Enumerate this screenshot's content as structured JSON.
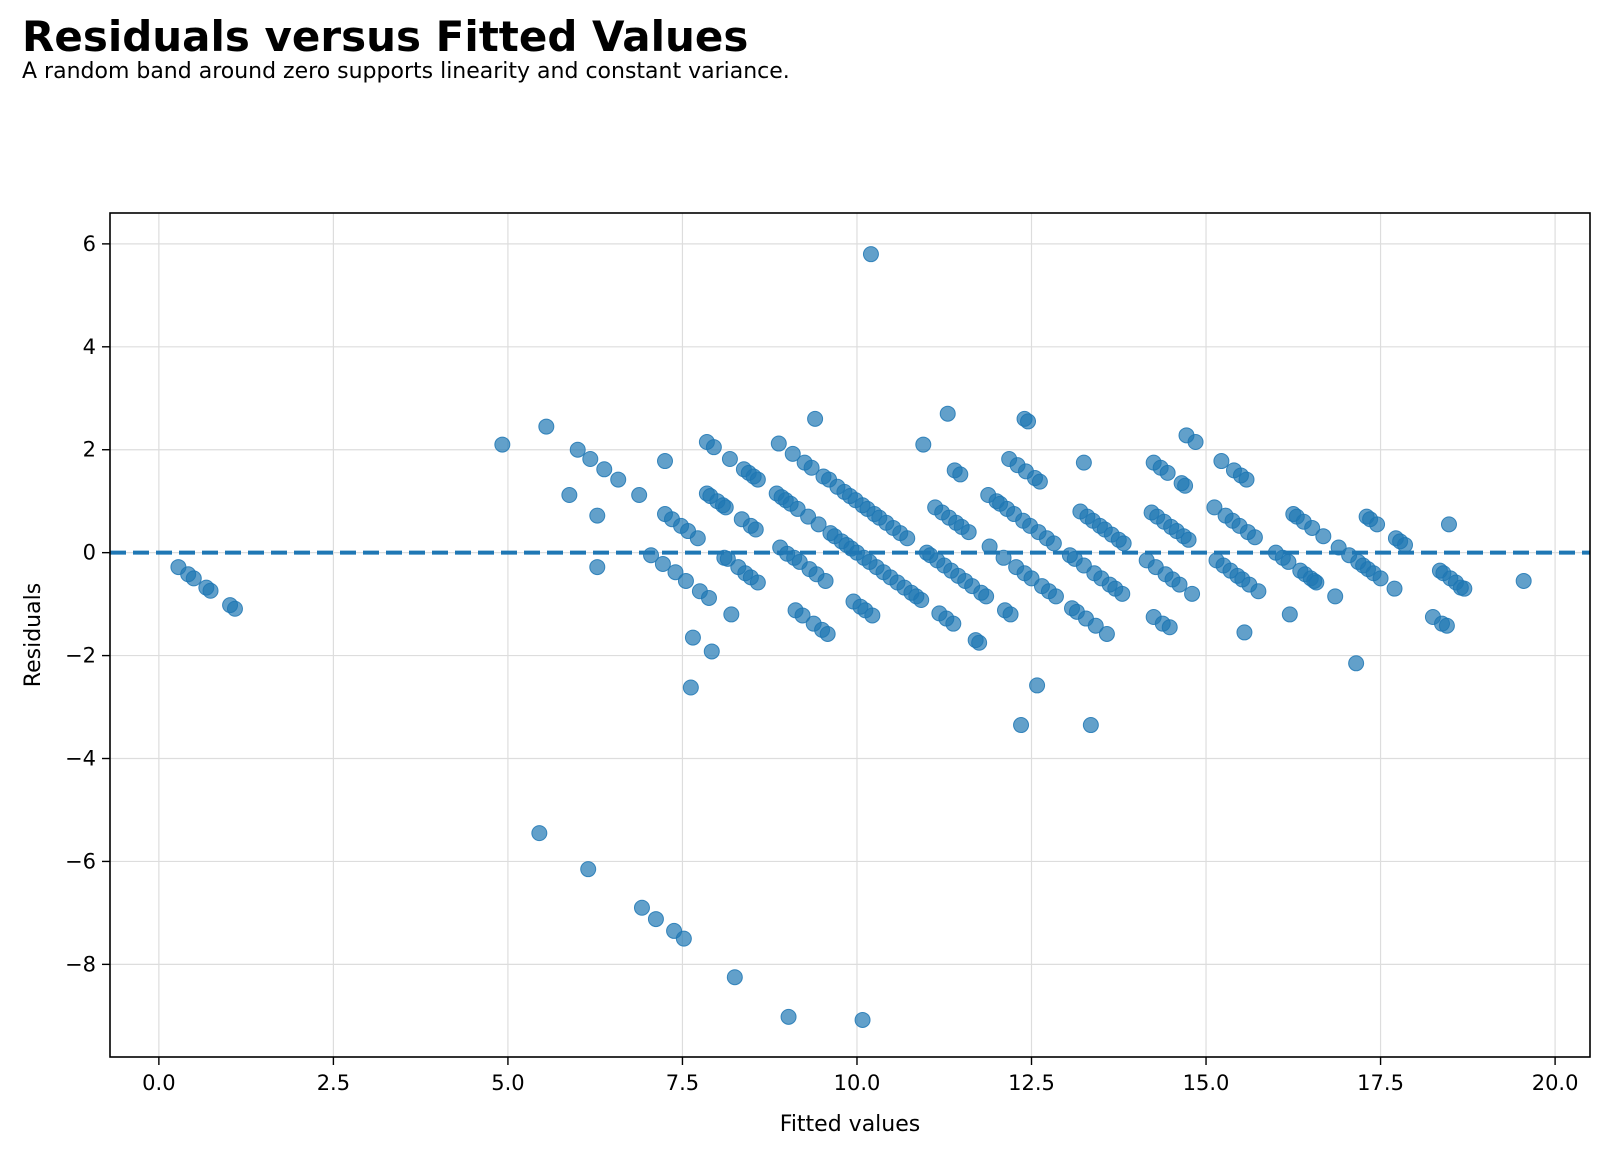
{
  "chart_data": {
    "type": "scatter",
    "title": "Residuals versus Fitted Values",
    "subtitle": "A random band around zero supports linearity and constant variance.",
    "xlabel": "Fitted values",
    "ylabel": "Residuals",
    "xlim": [
      -0.7,
      20.5
    ],
    "ylim": [
      -9.8,
      6.6
    ],
    "xticks": [
      0.0,
      2.5,
      5.0,
      7.5,
      10.0,
      12.5,
      15.0,
      17.5,
      20.0
    ],
    "xtick_labels": [
      "0.0",
      "2.5",
      "5.0",
      "7.5",
      "10.0",
      "12.5",
      "15.0",
      "17.5",
      "20.0"
    ],
    "yticks": [
      6,
      4,
      2,
      0,
      -2,
      -4,
      -6,
      -8
    ],
    "ytick_labels": [
      "6",
      "4",
      "2",
      "0",
      "−2",
      "−4",
      "−6",
      "−8"
    ],
    "grid": true,
    "reference_line": {
      "y": 0,
      "style": "dashed"
    },
    "colors": {
      "points": "#1f77b4",
      "reference_line": "#1f77b4",
      "grid": "#dddddd",
      "axes": "#000000"
    },
    "points": [
      [
        0.28,
        -0.28
      ],
      [
        0.42,
        -0.42
      ],
      [
        0.5,
        -0.5
      ],
      [
        0.68,
        -0.68
      ],
      [
        0.74,
        -0.74
      ],
      [
        1.02,
        -1.02
      ],
      [
        1.09,
        -1.09
      ],
      [
        4.92,
        2.1
      ],
      [
        5.45,
        -5.45
      ],
      [
        5.55,
        2.45
      ],
      [
        5.88,
        1.12
      ],
      [
        6.0,
        2.0
      ],
      [
        6.18,
        1.82
      ],
      [
        6.15,
        -6.15
      ],
      [
        6.28,
        0.72
      ],
      [
        6.28,
        -0.28
      ],
      [
        6.38,
        1.62
      ],
      [
        6.58,
        1.42
      ],
      [
        6.88,
        1.12
      ],
      [
        6.92,
        -6.9
      ],
      [
        7.05,
        -0.05
      ],
      [
        7.12,
        -7.12
      ],
      [
        7.22,
        -0.22
      ],
      [
        7.25,
        0.75
      ],
      [
        7.25,
        1.78
      ],
      [
        7.35,
        0.65
      ],
      [
        7.38,
        -7.35
      ],
      [
        7.4,
        -0.38
      ],
      [
        7.48,
        0.52
      ],
      [
        7.52,
        -7.5
      ],
      [
        7.55,
        -0.55
      ],
      [
        7.58,
        0.42
      ],
      [
        7.62,
        -2.62
      ],
      [
        7.65,
        -1.65
      ],
      [
        7.72,
        0.28
      ],
      [
        7.75,
        -0.75
      ],
      [
        7.85,
        2.15
      ],
      [
        7.85,
        1.15
      ],
      [
        7.88,
        -0.88
      ],
      [
        7.9,
        1.1
      ],
      [
        7.92,
        -1.92
      ],
      [
        7.95,
        2.05
      ],
      [
        8.0,
        1.0
      ],
      [
        8.08,
        0.92
      ],
      [
        8.1,
        -0.1
      ],
      [
        8.12,
        0.88
      ],
      [
        8.15,
        -0.12
      ],
      [
        8.18,
        1.82
      ],
      [
        8.2,
        -1.2
      ],
      [
        8.25,
        -8.25
      ],
      [
        8.3,
        -0.28
      ],
      [
        8.35,
        0.65
      ],
      [
        8.38,
        1.62
      ],
      [
        8.4,
        -0.4
      ],
      [
        8.45,
        1.55
      ],
      [
        8.48,
        0.52
      ],
      [
        8.48,
        -0.48
      ],
      [
        8.52,
        1.48
      ],
      [
        8.55,
        0.45
      ],
      [
        8.58,
        1.42
      ],
      [
        8.58,
        -0.58
      ],
      [
        8.85,
        1.15
      ],
      [
        8.88,
        2.12
      ],
      [
        8.9,
        0.1
      ],
      [
        8.92,
        1.08
      ],
      [
        8.98,
        1.02
      ],
      [
        9.0,
        -0.02
      ],
      [
        9.02,
        -9.02
      ],
      [
        9.05,
        0.95
      ],
      [
        9.08,
        1.92
      ],
      [
        9.1,
        -0.1
      ],
      [
        9.12,
        -1.12
      ],
      [
        9.15,
        0.85
      ],
      [
        9.18,
        -0.18
      ],
      [
        9.22,
        -1.22
      ],
      [
        9.25,
        1.75
      ],
      [
        9.3,
        0.7
      ],
      [
        9.32,
        -0.32
      ],
      [
        9.35,
        1.65
      ],
      [
        9.38,
        -1.38
      ],
      [
        9.4,
        2.6
      ],
      [
        9.42,
        -0.42
      ],
      [
        9.45,
        0.55
      ],
      [
        9.5,
        -1.5
      ],
      [
        9.52,
        1.48
      ],
      [
        9.55,
        -0.55
      ],
      [
        9.58,
        -1.58
      ],
      [
        9.6,
        1.42
      ],
      [
        9.62,
        0.38
      ],
      [
        9.68,
        0.32
      ],
      [
        9.72,
        1.28
      ],
      [
        9.78,
        0.22
      ],
      [
        9.82,
        1.18
      ],
      [
        9.85,
        0.15
      ],
      [
        9.9,
        1.1
      ],
      [
        9.92,
        0.08
      ],
      [
        9.95,
        -0.95
      ],
      [
        9.98,
        1.02
      ],
      [
        10.0,
        0.0
      ],
      [
        10.05,
        -1.05
      ],
      [
        10.08,
        -9.08
      ],
      [
        10.08,
        0.92
      ],
      [
        10.1,
        -0.1
      ],
      [
        10.12,
        -1.12
      ],
      [
        10.15,
        0.85
      ],
      [
        10.18,
        -0.18
      ],
      [
        10.2,
        5.8
      ],
      [
        10.22,
        -1.22
      ],
      [
        10.25,
        0.75
      ],
      [
        10.28,
        -0.28
      ],
      [
        10.32,
        0.68
      ],
      [
        10.38,
        -0.38
      ],
      [
        10.42,
        0.58
      ],
      [
        10.48,
        -0.48
      ],
      [
        10.52,
        0.48
      ],
      [
        10.58,
        -0.58
      ],
      [
        10.62,
        0.38
      ],
      [
        10.68,
        -0.68
      ],
      [
        10.72,
        0.28
      ],
      [
        10.78,
        -0.78
      ],
      [
        10.85,
        -0.85
      ],
      [
        10.92,
        -0.92
      ],
      [
        10.95,
        2.1
      ],
      [
        11.0,
        0.0
      ],
      [
        11.05,
        -0.05
      ],
      [
        11.12,
        0.88
      ],
      [
        11.15,
        -0.15
      ],
      [
        11.18,
        -1.18
      ],
      [
        11.22,
        0.78
      ],
      [
        11.25,
        -0.25
      ],
      [
        11.28,
        -1.28
      ],
      [
        11.3,
        2.7
      ],
      [
        11.32,
        0.68
      ],
      [
        11.35,
        -0.35
      ],
      [
        11.38,
        -1.38
      ],
      [
        11.4,
        1.6
      ],
      [
        11.42,
        0.58
      ],
      [
        11.45,
        -0.45
      ],
      [
        11.48,
        1.52
      ],
      [
        11.5,
        0.5
      ],
      [
        11.55,
        -0.55
      ],
      [
        11.6,
        0.4
      ],
      [
        11.65,
        -0.65
      ],
      [
        11.7,
        -1.7
      ],
      [
        11.75,
        -1.75
      ],
      [
        11.78,
        -0.78
      ],
      [
        11.85,
        -0.85
      ],
      [
        11.88,
        1.12
      ],
      [
        11.9,
        0.12
      ],
      [
        12.0,
        1.0
      ],
      [
        12.05,
        0.95
      ],
      [
        12.1,
        -0.1
      ],
      [
        12.12,
        -1.12
      ],
      [
        12.15,
        0.85
      ],
      [
        12.18,
        1.82
      ],
      [
        12.2,
        -1.2
      ],
      [
        12.25,
        0.75
      ],
      [
        12.28,
        -0.28
      ],
      [
        12.3,
        1.7
      ],
      [
        12.35,
        -3.35
      ],
      [
        12.38,
        0.62
      ],
      [
        12.4,
        2.6
      ],
      [
        12.4,
        -0.4
      ],
      [
        12.42,
        1.58
      ],
      [
        12.45,
        2.55
      ],
      [
        12.48,
        0.52
      ],
      [
        12.5,
        -0.5
      ],
      [
        12.55,
        1.45
      ],
      [
        12.58,
        -2.58
      ],
      [
        12.6,
        0.4
      ],
      [
        12.62,
        1.38
      ],
      [
        12.65,
        -0.65
      ],
      [
        12.72,
        0.28
      ],
      [
        12.75,
        -0.75
      ],
      [
        12.82,
        0.18
      ],
      [
        12.85,
        -0.85
      ],
      [
        13.05,
        -0.05
      ],
      [
        13.08,
        -1.08
      ],
      [
        13.12,
        -0.12
      ],
      [
        13.15,
        -1.15
      ],
      [
        13.2,
        0.8
      ],
      [
        13.25,
        1.75
      ],
      [
        13.25,
        -0.25
      ],
      [
        13.28,
        -1.28
      ],
      [
        13.3,
        0.7
      ],
      [
        13.35,
        -3.35
      ],
      [
        13.38,
        0.62
      ],
      [
        13.4,
        -0.4
      ],
      [
        13.42,
        -1.42
      ],
      [
        13.48,
        0.52
      ],
      [
        13.5,
        -0.5
      ],
      [
        13.55,
        0.45
      ],
      [
        13.58,
        -1.58
      ],
      [
        13.62,
        -0.62
      ],
      [
        13.65,
        0.35
      ],
      [
        13.7,
        -0.7
      ],
      [
        13.75,
        0.25
      ],
      [
        13.8,
        -0.8
      ],
      [
        13.82,
        0.18
      ],
      [
        14.15,
        -0.15
      ],
      [
        14.22,
        0.78
      ],
      [
        14.25,
        1.75
      ],
      [
        14.25,
        -1.25
      ],
      [
        14.28,
        -0.28
      ],
      [
        14.3,
        0.7
      ],
      [
        14.35,
        1.65
      ],
      [
        14.38,
        -1.38
      ],
      [
        14.4,
        0.6
      ],
      [
        14.42,
        -0.42
      ],
      [
        14.45,
        1.55
      ],
      [
        14.48,
        -1.45
      ],
      [
        14.5,
        0.5
      ],
      [
        14.52,
        -0.52
      ],
      [
        14.58,
        0.42
      ],
      [
        14.62,
        -0.62
      ],
      [
        14.65,
        1.35
      ],
      [
        14.68,
        0.32
      ],
      [
        14.7,
        1.3
      ],
      [
        14.72,
        2.28
      ],
      [
        14.75,
        0.25
      ],
      [
        14.8,
        -0.8
      ],
      [
        14.85,
        2.15
      ],
      [
        15.12,
        0.88
      ],
      [
        15.15,
        -0.15
      ],
      [
        15.22,
        1.78
      ],
      [
        15.25,
        -0.25
      ],
      [
        15.28,
        0.72
      ],
      [
        15.35,
        -0.35
      ],
      [
        15.38,
        0.62
      ],
      [
        15.4,
        1.6
      ],
      [
        15.45,
        -0.45
      ],
      [
        15.48,
        0.52
      ],
      [
        15.5,
        1.5
      ],
      [
        15.52,
        -0.52
      ],
      [
        15.55,
        -1.55
      ],
      [
        15.58,
        1.42
      ],
      [
        15.6,
        0.4
      ],
      [
        15.62,
        -0.62
      ],
      [
        15.7,
        0.3
      ],
      [
        15.75,
        -0.75
      ],
      [
        16.0,
        0.0
      ],
      [
        16.1,
        -0.1
      ],
      [
        16.18,
        -0.18
      ],
      [
        16.2,
        -1.2
      ],
      [
        16.25,
        0.75
      ],
      [
        16.3,
        0.7
      ],
      [
        16.35,
        -0.35
      ],
      [
        16.4,
        0.6
      ],
      [
        16.42,
        -0.42
      ],
      [
        16.5,
        -0.5
      ],
      [
        16.52,
        0.48
      ],
      [
        16.55,
        -0.55
      ],
      [
        16.58,
        -0.58
      ],
      [
        16.68,
        0.32
      ],
      [
        16.85,
        -0.85
      ],
      [
        16.9,
        0.1
      ],
      [
        17.05,
        -0.05
      ],
      [
        17.15,
        -2.15
      ],
      [
        17.18,
        -0.18
      ],
      [
        17.25,
        -0.25
      ],
      [
        17.3,
        0.7
      ],
      [
        17.32,
        -0.32
      ],
      [
        17.35,
        0.65
      ],
      [
        17.4,
        -0.4
      ],
      [
        17.45,
        0.55
      ],
      [
        17.5,
        -0.5
      ],
      [
        17.7,
        -0.7
      ],
      [
        17.72,
        0.28
      ],
      [
        17.78,
        0.22
      ],
      [
        17.85,
        0.15
      ],
      [
        18.25,
        -1.25
      ],
      [
        18.35,
        -0.35
      ],
      [
        18.38,
        -1.38
      ],
      [
        18.4,
        -0.4
      ],
      [
        18.45,
        -1.42
      ],
      [
        18.48,
        0.55
      ],
      [
        18.5,
        -0.5
      ],
      [
        18.58,
        -0.58
      ],
      [
        18.65,
        -0.68
      ],
      [
        18.7,
        -0.7
      ],
      [
        19.55,
        -0.55
      ]
    ]
  }
}
